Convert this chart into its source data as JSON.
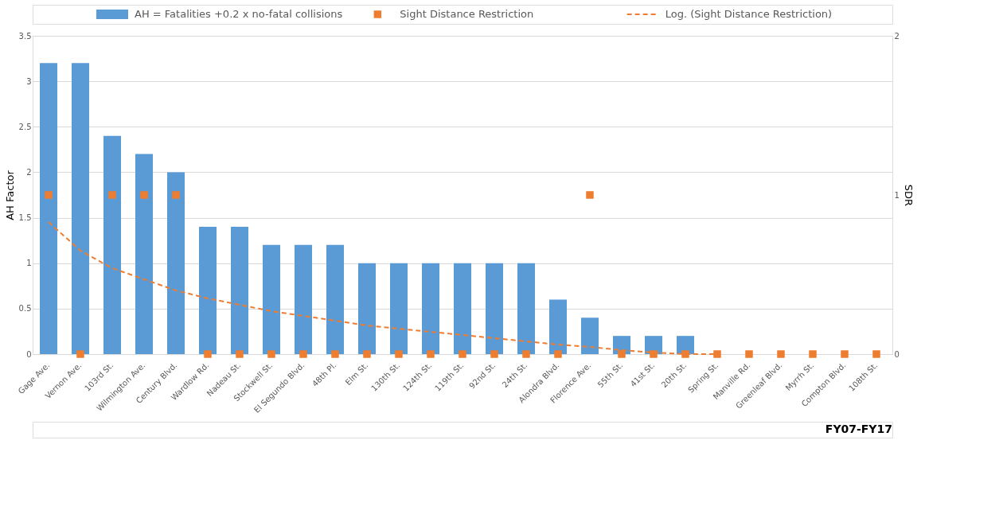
{
  "chart_data": {
    "type": "bar",
    "categories": [
      "Gage Ave.",
      "Vernon Ave.",
      "103rd St.",
      "Wilmington Ave.",
      "Century Blvd.",
      "Wardlow Rd.",
      "Nadeau St.",
      "Stockwell St.",
      "El Segundo Blvd.",
      "48th Pl.",
      "Elm St.",
      "130th St.",
      "124th St.",
      "119th St.",
      "92nd St.",
      "24th St.",
      "Alondra Blvd.",
      "Florence Ave.",
      "55th St.",
      "41st St.",
      "20th St.",
      "Spring St.",
      "Manville Rd.",
      "Greenleaf Blvd.",
      "Myrrh St.",
      "Compton Blvd.",
      "108th St."
    ],
    "ylabel": "AH Factor",
    "y2label": "SDR",
    "ylim": [
      0,
      3.5
    ],
    "yticks": [
      0,
      0.5,
      1,
      1.5,
      2,
      2.5,
      3,
      3.5
    ],
    "y2lim": [
      0,
      2
    ],
    "y2ticks": [
      0,
      1,
      2
    ],
    "grid": "y",
    "legend": "top",
    "annotations": [
      "FY07-FY17"
    ],
    "series": [
      {
        "name": "AH = Fatalities +0.2 x no-fatal collisions",
        "color": "#5b9bd5",
        "values": [
          3.2,
          3.2,
          2.4,
          2.2,
          2.0,
          1.4,
          1.4,
          1.2,
          1.2,
          1.2,
          1.0,
          1.0,
          1.0,
          1.0,
          1.0,
          1.0,
          0.6,
          0.4,
          0.2,
          0.2,
          0.2,
          0,
          0,
          0,
          0,
          0,
          0
        ]
      },
      {
        "type": "scatter",
        "axis": "y2",
        "marker": "square",
        "name": "Sight Distance Restriction",
        "color": "#ed7d31",
        "values": [
          1,
          0,
          1,
          1,
          1,
          0,
          0,
          0,
          0,
          0,
          0,
          0,
          0,
          0,
          0,
          0,
          0,
          1,
          0,
          0,
          0,
          0,
          0,
          0,
          0,
          0,
          0
        ]
      },
      {
        "type": "line",
        "axis": "y2",
        "line_style": "dashed",
        "name": "Log. (Sight Distance Restriction)",
        "color": "#ed7d31",
        "values": [
          0.83,
          0.65,
          0.54,
          0.47,
          0.4,
          0.35,
          0.31,
          0.27,
          0.24,
          0.21,
          0.18,
          0.16,
          0.14,
          0.12,
          0.1,
          0.08,
          0.06,
          0.045,
          0.025,
          0.01,
          0,
          0,
          null,
          null,
          null,
          null,
          null
        ]
      }
    ]
  }
}
